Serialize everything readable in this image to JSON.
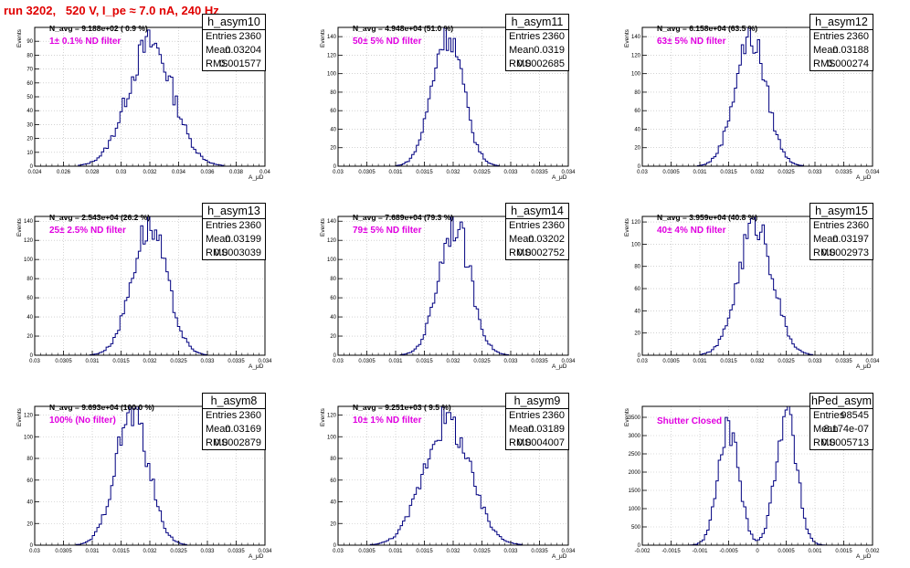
{
  "header": {
    "title": "run 3202,   520 V, I_pe ≈ 7.0 nA, 240 Hz"
  },
  "chart_data": [
    {
      "type": "histogram",
      "name": "h_asym10",
      "xlabel": "A_μD",
      "ylabel": "Events",
      "xlim": [
        0.024,
        0.04
      ],
      "ylim": [
        0,
        100
      ],
      "xticks": [
        0.024,
        0.026,
        0.028,
        0.03,
        0.032,
        0.034,
        0.036,
        0.038,
        0.04
      ],
      "xtick_labels": [
        "0.024",
        "0.026",
        "0.028",
        "0.03",
        "0.032",
        "0.034",
        "0.036",
        "0.038",
        "0.04"
      ],
      "yticks": [
        0,
        10,
        20,
        30,
        40,
        50,
        60,
        70,
        80,
        90
      ],
      "stats": {
        "entries": "2360",
        "mean": "0.03204",
        "rms": "0.001577"
      },
      "n_avg": "N_avg = 9.188e+02 ( 0.9 %)",
      "filter": "1± 0.1% ND filter",
      "dist": [
        {
          "mu": 0.03204,
          "sigma": 0.001577,
          "peak": 88
        }
      ],
      "grid": true
    },
    {
      "type": "histogram",
      "name": "h_asym11",
      "xlabel": "A_μD",
      "ylabel": "Events",
      "xlim": [
        0.03,
        0.034
      ],
      "ylim": [
        0,
        150
      ],
      "xticks": [
        0.03,
        0.0305,
        0.031,
        0.0315,
        0.032,
        0.0325,
        0.033,
        0.0335,
        0.034
      ],
      "xtick_labels": [
        "0.03",
        "0.0305",
        "0.031",
        "0.0315",
        "0.032",
        "0.0325",
        "0.033",
        "0.0335",
        "0.034"
      ],
      "yticks": [
        0,
        20,
        40,
        60,
        80,
        100,
        120,
        140
      ],
      "stats": {
        "entries": "2360",
        "mean": "0.0319",
        "rms": "0.0002685"
      },
      "n_avg": "N_avg = 4.948e+04 (51.0 %)",
      "filter": "50± 5% ND filter",
      "dist": [
        {
          "mu": 0.0319,
          "sigma": 0.0002685,
          "peak": 145
        }
      ],
      "grid": true
    },
    {
      "type": "histogram",
      "name": "h_asym12",
      "xlabel": "A_μD",
      "ylabel": "Events",
      "xlim": [
        0.03,
        0.034
      ],
      "ylim": [
        0,
        150
      ],
      "xticks": [
        0.03,
        0.0305,
        0.031,
        0.0315,
        0.032,
        0.0325,
        0.033,
        0.0335,
        0.034
      ],
      "xtick_labels": [
        "0.03",
        "0.0305",
        "0.031",
        "0.0315",
        "0.032",
        "0.0325",
        "0.033",
        "0.0335",
        "0.034"
      ],
      "yticks": [
        0,
        20,
        40,
        60,
        80,
        100,
        120,
        140
      ],
      "stats": {
        "entries": "2360",
        "mean": "0.03188",
        "rms": "0.000274"
      },
      "n_avg": "N_avg = 6.158e+04 (63.5 %)",
      "filter": "63± 5% ND filter",
      "dist": [
        {
          "mu": 0.03188,
          "sigma": 0.000274,
          "peak": 140
        }
      ],
      "grid": true
    },
    {
      "type": "histogram",
      "name": "h_asym13",
      "xlabel": "A_μD",
      "ylabel": "Events",
      "xlim": [
        0.03,
        0.034
      ],
      "ylim": [
        0,
        145
      ],
      "xticks": [
        0.03,
        0.0305,
        0.031,
        0.0315,
        0.032,
        0.0325,
        0.033,
        0.0335,
        0.034
      ],
      "xtick_labels": [
        "0.03",
        "0.0305",
        "0.031",
        "0.0315",
        "0.032",
        "0.0325",
        "0.033",
        "0.0335",
        "0.034"
      ],
      "yticks": [
        0,
        20,
        40,
        60,
        80,
        100,
        120,
        140
      ],
      "stats": {
        "entries": "2360",
        "mean": "0.03199",
        "rms": "0.0003039"
      },
      "n_avg": "N_avg = 2.543e+04 (26.2 %)",
      "filter": "25± 2.5% ND filter",
      "dist": [
        {
          "mu": 0.03199,
          "sigma": 0.0003039,
          "peak": 135
        }
      ],
      "grid": true
    },
    {
      "type": "histogram",
      "name": "h_asym14",
      "xlabel": "A_μD",
      "ylabel": "Events",
      "xlim": [
        0.03,
        0.034
      ],
      "ylim": [
        0,
        145
      ],
      "xticks": [
        0.03,
        0.0305,
        0.031,
        0.0315,
        0.032,
        0.0325,
        0.033,
        0.0335,
        0.034
      ],
      "xtick_labels": [
        "0.03",
        "0.0305",
        "0.031",
        "0.0315",
        "0.032",
        "0.0325",
        "0.033",
        "0.0335",
        "0.034"
      ],
      "yticks": [
        0,
        20,
        40,
        60,
        80,
        100,
        120,
        140
      ],
      "stats": {
        "entries": "2360",
        "mean": "0.03202",
        "rms": "0.0002752"
      },
      "n_avg": "N_avg = 7.689e+04 (79.3 %)",
      "filter": "79± 5% ND filter",
      "dist": [
        {
          "mu": 0.03202,
          "sigma": 0.0002752,
          "peak": 138
        }
      ],
      "grid": true
    },
    {
      "type": "histogram",
      "name": "h_asym15",
      "xlabel": "A_μD",
      "ylabel": "Events",
      "xlim": [
        0.03,
        0.034
      ],
      "ylim": [
        0,
        125
      ],
      "xticks": [
        0.03,
        0.0305,
        0.031,
        0.0315,
        0.032,
        0.0325,
        0.033,
        0.0335,
        0.034
      ],
      "xtick_labels": [
        "0.03",
        "0.0305",
        "0.031",
        "0.0315",
        "0.032",
        "0.0325",
        "0.033",
        "0.0335",
        "0.034"
      ],
      "yticks": [
        0,
        20,
        40,
        60,
        80,
        100,
        120
      ],
      "stats": {
        "entries": "2360",
        "mean": "0.03197",
        "rms": "0.0002973"
      },
      "n_avg": "N_avg = 3.959e+04 (40.8 %)",
      "filter": "40± 4% ND filter",
      "dist": [
        {
          "mu": 0.03197,
          "sigma": 0.0002973,
          "peak": 120
        }
      ],
      "grid": true
    },
    {
      "type": "histogram",
      "name": "h_asym8",
      "xlabel": "A_μD",
      "ylabel": "Events",
      "xlim": [
        0.03,
        0.034
      ],
      "ylim": [
        0,
        128
      ],
      "xticks": [
        0.03,
        0.0305,
        0.031,
        0.0315,
        0.032,
        0.0325,
        0.033,
        0.0335,
        0.034
      ],
      "xtick_labels": [
        "0.03",
        "0.0305",
        "0.031",
        "0.0315",
        "0.032",
        "0.0325",
        "0.033",
        "0.0335",
        "0.034"
      ],
      "yticks": [
        0,
        20,
        40,
        60,
        80,
        100,
        120
      ],
      "stats": {
        "entries": "2360",
        "mean": "0.03169",
        "rms": "0.0002879"
      },
      "n_avg": "N_avg = 9.693e+04 (100.0 %)",
      "filter": "100% (No filter)",
      "dist": [
        {
          "mu": 0.03169,
          "sigma": 0.0002879,
          "peak": 122
        }
      ],
      "grid": true
    },
    {
      "type": "histogram",
      "name": "h_asym9",
      "xlabel": "A_μD",
      "ylabel": "Events",
      "xlim": [
        0.03,
        0.034
      ],
      "ylim": [
        0,
        128
      ],
      "xticks": [
        0.03,
        0.0305,
        0.031,
        0.0315,
        0.032,
        0.0325,
        0.033,
        0.0335,
        0.034
      ],
      "xtick_labels": [
        "0.03",
        "0.0305",
        "0.031",
        "0.0315",
        "0.032",
        "0.0325",
        "0.033",
        "0.0335",
        "0.034"
      ],
      "yticks": [
        0,
        20,
        40,
        60,
        80,
        100,
        120
      ],
      "stats": {
        "entries": "2360",
        "mean": "0.03189",
        "rms": "0.0004007"
      },
      "n_avg": "N_avg = 9.251e+03 ( 9.5 %)",
      "filter": "10± 1% ND filter",
      "dist": [
        {
          "mu": 0.03189,
          "sigma": 0.0004007,
          "peak": 115
        }
      ],
      "grid": true
    },
    {
      "type": "histogram",
      "name": "hPed_asym",
      "xlabel": "A_μD",
      "ylabel": "Events",
      "xlim": [
        -0.002,
        0.002
      ],
      "ylim": [
        0,
        3800
      ],
      "xticks": [
        -0.002,
        -0.0015,
        -0.001,
        -0.0005,
        0,
        0.0005,
        0.001,
        0.0015,
        0.002
      ],
      "xtick_labels": [
        "-0.002",
        "-0.0015",
        "-0.001",
        "-0.0005",
        "0",
        "0.0005",
        "0.001",
        "0.0015",
        "0.002"
      ],
      "yticks": [
        0,
        500,
        1000,
        1500,
        2000,
        2500,
        3000,
        3500
      ],
      "stats": {
        "entries": "98545",
        "mean": "8.174e-07",
        "rms": "0.0005713"
      },
      "n_avg": "",
      "filter": "Shutter Closed",
      "dist": [
        {
          "mu": -0.0005,
          "sigma": 0.00018,
          "peak": 3200
        },
        {
          "mu": 0.0005,
          "sigma": 0.00018,
          "peak": 3650
        }
      ],
      "grid": true
    }
  ],
  "labels": {
    "entries": "Entries",
    "mean": "Mean",
    "rms": "RMS"
  },
  "colors": {
    "line": "#000080",
    "title": "#e00000",
    "filter": "#e000e0",
    "grid": "#b8b8b8"
  }
}
